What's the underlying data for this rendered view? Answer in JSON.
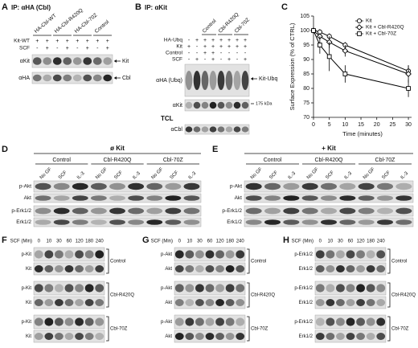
{
  "panels": {
    "A": {
      "letter": "A",
      "title": "IP: αHA (Cbl)",
      "columns": [
        "HA-Cbl-WT",
        "HA-Cbl-R420Q",
        "HA-Cbl-70Z",
        "Control"
      ],
      "conditions": [
        {
          "label": "Kit-WT",
          "signs": [
            "+",
            "+",
            "+",
            "+",
            "+",
            "+",
            "+",
            "+"
          ]
        },
        {
          "label": "SCF",
          "signs": [
            "-",
            "+",
            "-",
            "+",
            "-",
            "+",
            "-",
            "+"
          ]
        }
      ],
      "blots": [
        {
          "label": "αKit",
          "band": "Kit"
        },
        {
          "label": "αHA",
          "band": "Cbl"
        }
      ]
    },
    "B": {
      "letter": "B",
      "title": "IP: αKit",
      "columns": [
        "Control",
        "Cbl-R420Q",
        "Cbl-70Z"
      ],
      "conditions": [
        {
          "label": "HA-Ubq",
          "signs": [
            "-",
            "+",
            "+",
            "+",
            "+",
            "+",
            "+",
            "+"
          ]
        },
        {
          "label": "Kit",
          "signs": [
            "+",
            "-",
            "+",
            "+",
            "+",
            "+",
            "+",
            "+"
          ]
        },
        {
          "label": "Control",
          "signs": [
            "-",
            "-",
            "+",
            "+",
            "-",
            "-",
            "-",
            "-"
          ]
        },
        {
          "label": "SCF",
          "signs": [
            "-",
            "+",
            "-",
            "+",
            "-",
            "+",
            "-",
            "+"
          ]
        }
      ],
      "blots": [
        {
          "label": "αHA (Ubq)",
          "band": "Kit-Ubq"
        },
        {
          "label": "αKit",
          "marker": "175 kDa"
        }
      ],
      "tcl": {
        "label": "TCL",
        "blot": "αCbl"
      }
    },
    "C": {
      "letter": "C"
    },
    "D": {
      "letter": "D",
      "title": "ø Kit",
      "columns": [
        "Control",
        "Cbl-R420Q",
        "Cbl-70Z"
      ],
      "lanes": [
        "No GF",
        "SCF",
        "IL-3",
        "No GF",
        "SCF",
        "IL-3",
        "No GF",
        "SCF",
        "IL-3"
      ],
      "blots": [
        "p-Akt",
        "Akt",
        "p-Erk1/2",
        "Erk1/2"
      ]
    },
    "E": {
      "letter": "E",
      "title": "+ Kit",
      "columns": [
        "Control",
        "Cbl-R420Q",
        "Cbl-70Z"
      ],
      "lanes": [
        "No GF",
        "SCF",
        "IL-3",
        "No GF",
        "SCF",
        "IL-3",
        "No GF",
        "SCF",
        "IL-3"
      ],
      "blots": [
        "p-Akt",
        "Akt",
        "p-Erk1/2",
        "Erk1/2"
      ]
    },
    "F": {
      "letter": "F",
      "time_label": "SCF (Min)",
      "times": [
        0,
        10,
        30,
        60,
        120,
        180,
        240
      ],
      "groups": [
        {
          "name": "Control",
          "blots": [
            "p-Kit",
            "Kit"
          ]
        },
        {
          "name": "Cbl-R420Q",
          "blots": [
            "p-Kit",
            "Kit"
          ]
        },
        {
          "name": "Cbl-70Z",
          "blots": [
            "p-Kit",
            "Kit"
          ]
        }
      ]
    },
    "G": {
      "letter": "G",
      "time_label": "SCF (Min)",
      "times": [
        0,
        10,
        30,
        60,
        120,
        180,
        240
      ],
      "groups": [
        {
          "name": "Control",
          "blots": [
            "p-Akt",
            "Akt"
          ]
        },
        {
          "name": "Cbl-R420Q",
          "blots": [
            "p-Akt",
            "Akt"
          ]
        },
        {
          "name": "Cbl-70Z",
          "blots": [
            "p-Akt",
            "Akt"
          ]
        }
      ]
    },
    "H": {
      "letter": "H",
      "time_label": "SCF (Min)",
      "times": [
        0,
        10,
        30,
        60,
        120,
        180,
        240
      ],
      "groups": [
        {
          "name": "Control",
          "blots": [
            "p-Erk1/2",
            "Erk1/2"
          ]
        },
        {
          "name": "Cbl-R420Q",
          "blots": [
            "p-Erk1/2",
            "Erk1/2"
          ]
        },
        {
          "name": "Cbl-70Z",
          "blots": [
            "p-Erk1/2",
            "Erk1/2"
          ]
        }
      ]
    }
  },
  "chart_data": {
    "type": "line",
    "x_label": "Time (minutes)",
    "y_label": "Surface Expression (% of CTRL)",
    "x": [
      0,
      2,
      5,
      10,
      30
    ],
    "series": [
      {
        "name": "Kit",
        "color": "#000000",
        "marker": "circle",
        "values": [
          100,
          99.5,
          98,
          95,
          86
        ],
        "errors": [
          0,
          1,
          1,
          1,
          2
        ]
      },
      {
        "name": "Kit + Cbl-R420Q",
        "color": "#000000",
        "marker": "diamond",
        "values": [
          100,
          98,
          96,
          93,
          85
        ],
        "errors": [
          0,
          1,
          2,
          2,
          3
        ]
      },
      {
        "name": "Kit + Cbl-70Z",
        "color": "#000000",
        "marker": "square",
        "values": [
          100,
          95,
          91,
          85,
          80
        ],
        "errors": [
          0,
          3,
          5,
          3,
          3
        ]
      }
    ],
    "xlim": [
      0,
      31
    ],
    "ylim": [
      70,
      105
    ],
    "xticks": [
      0,
      5,
      10,
      15,
      20,
      25,
      30
    ],
    "yticks": [
      70,
      75,
      80,
      85,
      90,
      95,
      100,
      105
    ],
    "legend": "upper right"
  }
}
